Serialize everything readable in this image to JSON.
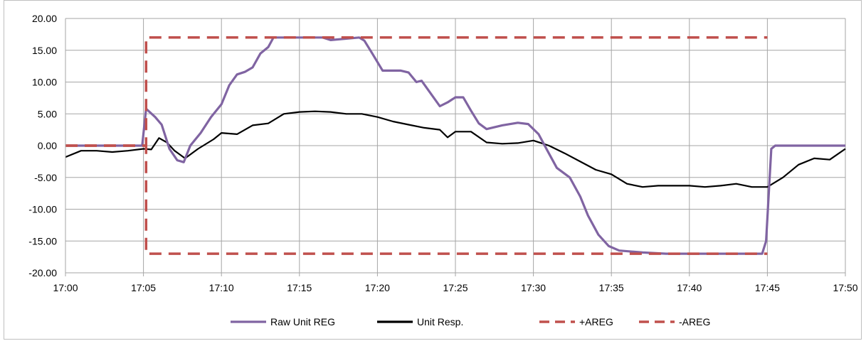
{
  "chart_data": {
    "type": "line",
    "title": "",
    "xlabel": "",
    "ylabel": "",
    "x_axis": {
      "type": "time",
      "min": "17:00",
      "max": "17:50",
      "ticks": [
        "17:00",
        "17:05",
        "17:10",
        "17:15",
        "17:20",
        "17:25",
        "17:30",
        "17:35",
        "17:40",
        "17:45",
        "17:50"
      ]
    },
    "y_axis": {
      "min": -20,
      "max": 20,
      "ticks": [
        "20.00",
        "15.00",
        "10.00",
        "5.00",
        "0.00",
        "-5.00",
        "-10.00",
        "-15.00",
        "-20.00"
      ]
    },
    "grid": true,
    "legend_position": "bottom",
    "series": [
      {
        "name": "Raw Unit REG",
        "color": "#8064a2",
        "style": "solid",
        "points": [
          [
            "17:00",
            0
          ],
          [
            "17:04:55",
            0
          ],
          [
            "17:05:10",
            5.8
          ],
          [
            "17:05:45",
            4.5
          ],
          [
            "17:06:10",
            3.3
          ],
          [
            "17:06:40",
            -0.5
          ],
          [
            "17:07:10",
            -2.3
          ],
          [
            "17:07:35",
            -2.6
          ],
          [
            "17:08:00",
            0
          ],
          [
            "17:08:40",
            2
          ],
          [
            "17:09:20",
            4.5
          ],
          [
            "17:10:00",
            6.5
          ],
          [
            "17:10:30",
            9.5
          ],
          [
            "17:11:00",
            11.2
          ],
          [
            "17:11:30",
            11.6
          ],
          [
            "17:12:00",
            12.3
          ],
          [
            "17:12:30",
            14.5
          ],
          [
            "17:13:00",
            15.5
          ],
          [
            "17:13:20",
            17
          ],
          [
            "17:16:30",
            17
          ],
          [
            "17:17:00",
            16.6
          ],
          [
            "17:18:50",
            17
          ],
          [
            "17:19:10",
            16.5
          ],
          [
            "17:19:40",
            14.5
          ],
          [
            "17:20:20",
            11.8
          ],
          [
            "17:21:30",
            11.8
          ],
          [
            "17:22:00",
            11.5
          ],
          [
            "17:22:30",
            10
          ],
          [
            "17:22:50",
            10.2
          ],
          [
            "17:24:00",
            6.2
          ],
          [
            "17:24:30",
            6.8
          ],
          [
            "17:25:00",
            7.6
          ],
          [
            "17:25:30",
            7.6
          ],
          [
            "17:26:00",
            5.5
          ],
          [
            "17:26:30",
            3.5
          ],
          [
            "17:27:00",
            2.6
          ],
          [
            "17:28:00",
            3.2
          ],
          [
            "17:29:00",
            3.6
          ],
          [
            "17:29:40",
            3.4
          ],
          [
            "17:30:20",
            1.8
          ],
          [
            "17:30:50",
            -0.5
          ],
          [
            "17:31:30",
            -3.5
          ],
          [
            "17:32:20",
            -5
          ],
          [
            "17:33:00",
            -8
          ],
          [
            "17:33:30",
            -11
          ],
          [
            "17:34:10",
            -14
          ],
          [
            "17:34:50",
            -15.8
          ],
          [
            "17:35:30",
            -16.5
          ],
          [
            "17:37:00",
            -16.8
          ],
          [
            "17:38:30",
            -17
          ],
          [
            "17:44:40",
            -17
          ],
          [
            "17:44:55",
            -15
          ],
          [
            "17:45:15",
            -0.5
          ],
          [
            "17:45:30",
            0
          ],
          [
            "17:50",
            0
          ]
        ]
      },
      {
        "name": "Unit Resp.",
        "color": "#000000",
        "style": "solid",
        "points": [
          [
            "17:00",
            -1.8
          ],
          [
            "17:01",
            -0.8
          ],
          [
            "17:02",
            -0.8
          ],
          [
            "17:03",
            -1.0
          ],
          [
            "17:04",
            -0.8
          ],
          [
            "17:05",
            -0.5
          ],
          [
            "17:05:30",
            -0.6
          ],
          [
            "17:06",
            1.2
          ],
          [
            "17:06:30",
            0.5
          ],
          [
            "17:07",
            -0.8
          ],
          [
            "17:07:40",
            -2.0
          ],
          [
            "17:08:30",
            -0.5
          ],
          [
            "17:09:30",
            1.0
          ],
          [
            "17:10",
            2.0
          ],
          [
            "17:11",
            1.8
          ],
          [
            "17:12",
            3.2
          ],
          [
            "17:13",
            3.5
          ],
          [
            "17:14",
            5.0
          ],
          [
            "17:15",
            5.3
          ],
          [
            "17:16",
            5.4
          ],
          [
            "17:17",
            5.3
          ],
          [
            "17:18",
            5.0
          ],
          [
            "17:19",
            5.0
          ],
          [
            "17:20",
            4.5
          ],
          [
            "17:21",
            3.8
          ],
          [
            "17:22",
            3.3
          ],
          [
            "17:23",
            2.8
          ],
          [
            "17:24",
            2.5
          ],
          [
            "17:24:30",
            1.3
          ],
          [
            "17:25",
            2.2
          ],
          [
            "17:26",
            2.2
          ],
          [
            "17:27",
            0.5
          ],
          [
            "17:28",
            0.3
          ],
          [
            "17:29",
            0.4
          ],
          [
            "17:30",
            0.8
          ],
          [
            "17:31",
            0
          ],
          [
            "17:32",
            -1.2
          ],
          [
            "17:33",
            -2.5
          ],
          [
            "17:34",
            -3.8
          ],
          [
            "17:35",
            -4.5
          ],
          [
            "17:36",
            -6.0
          ],
          [
            "17:37",
            -6.5
          ],
          [
            "17:38",
            -6.3
          ],
          [
            "17:39",
            -6.3
          ],
          [
            "17:40",
            -6.3
          ],
          [
            "17:41",
            -6.5
          ],
          [
            "17:42",
            -6.3
          ],
          [
            "17:43",
            -6.0
          ],
          [
            "17:44",
            -6.5
          ],
          [
            "17:45",
            -6.5
          ],
          [
            "17:46",
            -5.0
          ],
          [
            "17:47",
            -3.0
          ],
          [
            "17:48",
            -2.0
          ],
          [
            "17:49",
            -2.2
          ],
          [
            "17:50",
            -0.5
          ]
        ]
      },
      {
        "name": "+AREG",
        "color": "#c0504d",
        "style": "dashed",
        "points": [
          [
            "17:00",
            0
          ],
          [
            "17:05:10",
            0
          ],
          [
            "17:05:10",
            17
          ],
          [
            "17:45",
            17
          ]
        ]
      },
      {
        "name": "-AREG",
        "color": "#c0504d",
        "style": "dashed",
        "points": [
          [
            "17:00",
            0
          ],
          [
            "17:05:10",
            0
          ],
          [
            "17:05:10",
            -17
          ],
          [
            "17:45",
            -17
          ]
        ]
      }
    ]
  }
}
